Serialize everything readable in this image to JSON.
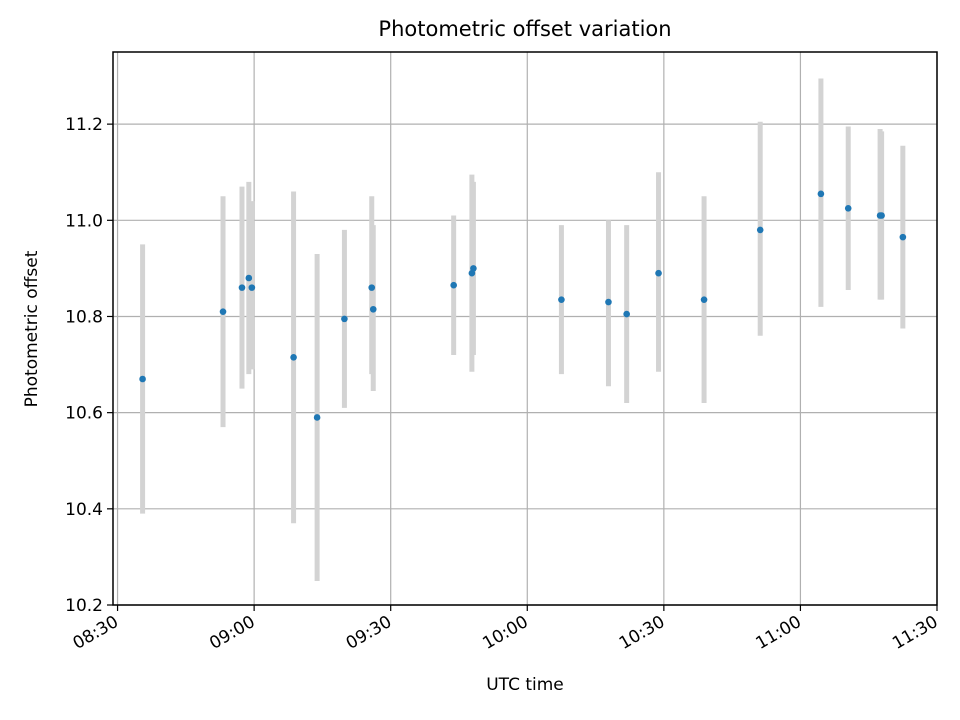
{
  "chart_data": {
    "type": "scatter",
    "title": "Photometric offset variation",
    "xlabel": "UTC time",
    "ylabel": "Photometric offset",
    "xlim": [
      "08:29",
      "11:30"
    ],
    "ylim": [
      10.2,
      11.35
    ],
    "x_ticks": [
      "08:30",
      "09:00",
      "09:30",
      "10:00",
      "10:30",
      "11:00",
      "11:30"
    ],
    "y_ticks": [
      "10.2",
      "10.4",
      "10.6",
      "10.8",
      "11.0",
      "11.2"
    ],
    "grid": true,
    "point_color": "#1f77b4",
    "errorbar_color": "#d3d3d3",
    "series": [
      {
        "points": [
          {
            "t": "08:35:30",
            "y": 10.67,
            "low": 10.39,
            "high": 10.95
          },
          {
            "t": "08:53:10",
            "y": 10.81,
            "low": 10.57,
            "high": 11.05
          },
          {
            "t": "08:57:20",
            "y": 10.86,
            "low": 10.65,
            "high": 11.07
          },
          {
            "t": "08:58:50",
            "y": 10.88,
            "low": 10.68,
            "high": 11.08
          },
          {
            "t": "08:59:30",
            "y": 10.86,
            "low": 10.69,
            "high": 11.04
          },
          {
            "t": "09:08:40",
            "y": 10.715,
            "low": 10.37,
            "high": 11.06
          },
          {
            "t": "09:13:50",
            "y": 10.59,
            "low": 10.25,
            "high": 10.93
          },
          {
            "t": "09:19:50",
            "y": 10.795,
            "low": 10.61,
            "high": 10.98
          },
          {
            "t": "09:25:50",
            "y": 10.86,
            "low": 10.68,
            "high": 11.05
          },
          {
            "t": "09:26:10",
            "y": 10.815,
            "low": 10.645,
            "high": 10.99
          },
          {
            "t": "09:43:50",
            "y": 10.865,
            "low": 10.72,
            "high": 11.01
          },
          {
            "t": "09:47:50",
            "y": 10.89,
            "low": 10.685,
            "high": 11.095
          },
          {
            "t": "09:48:10",
            "y": 10.9,
            "low": 10.72,
            "high": 11.08
          },
          {
            "t": "10:07:30",
            "y": 10.835,
            "low": 10.68,
            "high": 10.99
          },
          {
            "t": "10:17:50",
            "y": 10.83,
            "low": 10.655,
            "high": 11.0
          },
          {
            "t": "10:21:50",
            "y": 10.805,
            "low": 10.62,
            "high": 10.99
          },
          {
            "t": "10:28:50",
            "y": 10.89,
            "low": 10.685,
            "high": 11.1
          },
          {
            "t": "10:38:50",
            "y": 10.835,
            "low": 10.62,
            "high": 11.05
          },
          {
            "t": "10:51:10",
            "y": 10.98,
            "low": 10.76,
            "high": 11.205
          },
          {
            "t": "11:04:30",
            "y": 11.055,
            "low": 10.82,
            "high": 11.295
          },
          {
            "t": "11:10:30",
            "y": 11.025,
            "low": 10.855,
            "high": 11.195
          },
          {
            "t": "11:17:30",
            "y": 11.01,
            "low": 10.835,
            "high": 11.19
          },
          {
            "t": "11:17:50",
            "y": 11.01,
            "low": 10.835,
            "high": 11.185
          },
          {
            "t": "11:22:30",
            "y": 10.965,
            "low": 10.775,
            "high": 11.155
          }
        ]
      }
    ]
  }
}
